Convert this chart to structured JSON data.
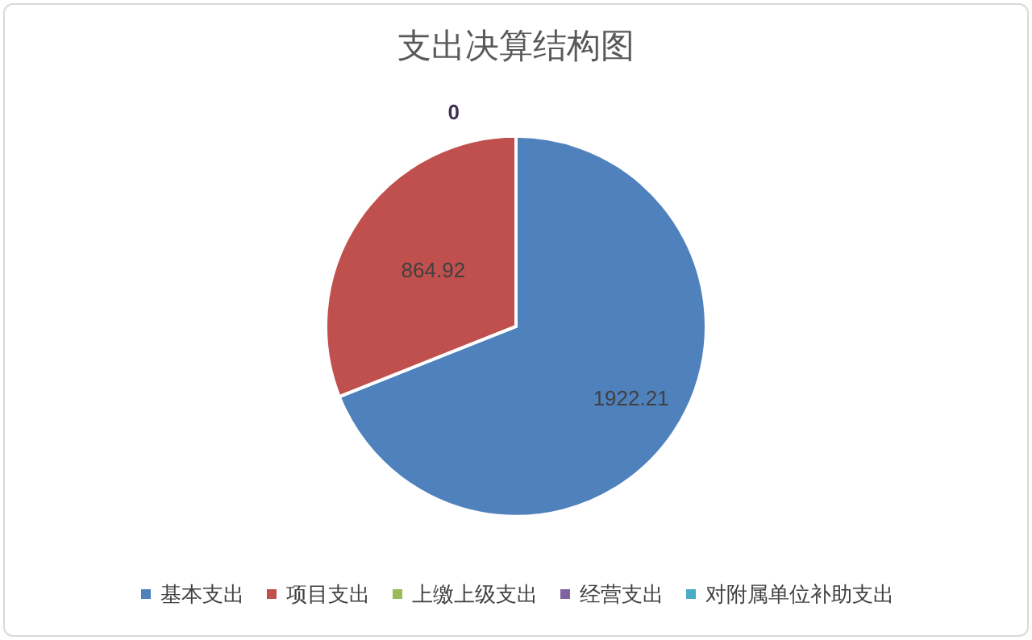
{
  "chart_data": {
    "type": "pie",
    "title": "支出决算结构图",
    "categories": [
      "基本支出",
      "项目支出",
      "上缴上级支出",
      "经营支出",
      "对附属单位补助支出"
    ],
    "values": [
      1922.21,
      864.92,
      0,
      0,
      0
    ],
    "colors": [
      "#4f81bd",
      "#c0504d",
      "#9bbb59",
      "#8064a2",
      "#4bacc6"
    ],
    "value_labels": [
      "1922.21",
      "864.92",
      null,
      "0",
      null
    ],
    "legend": "bottom"
  }
}
